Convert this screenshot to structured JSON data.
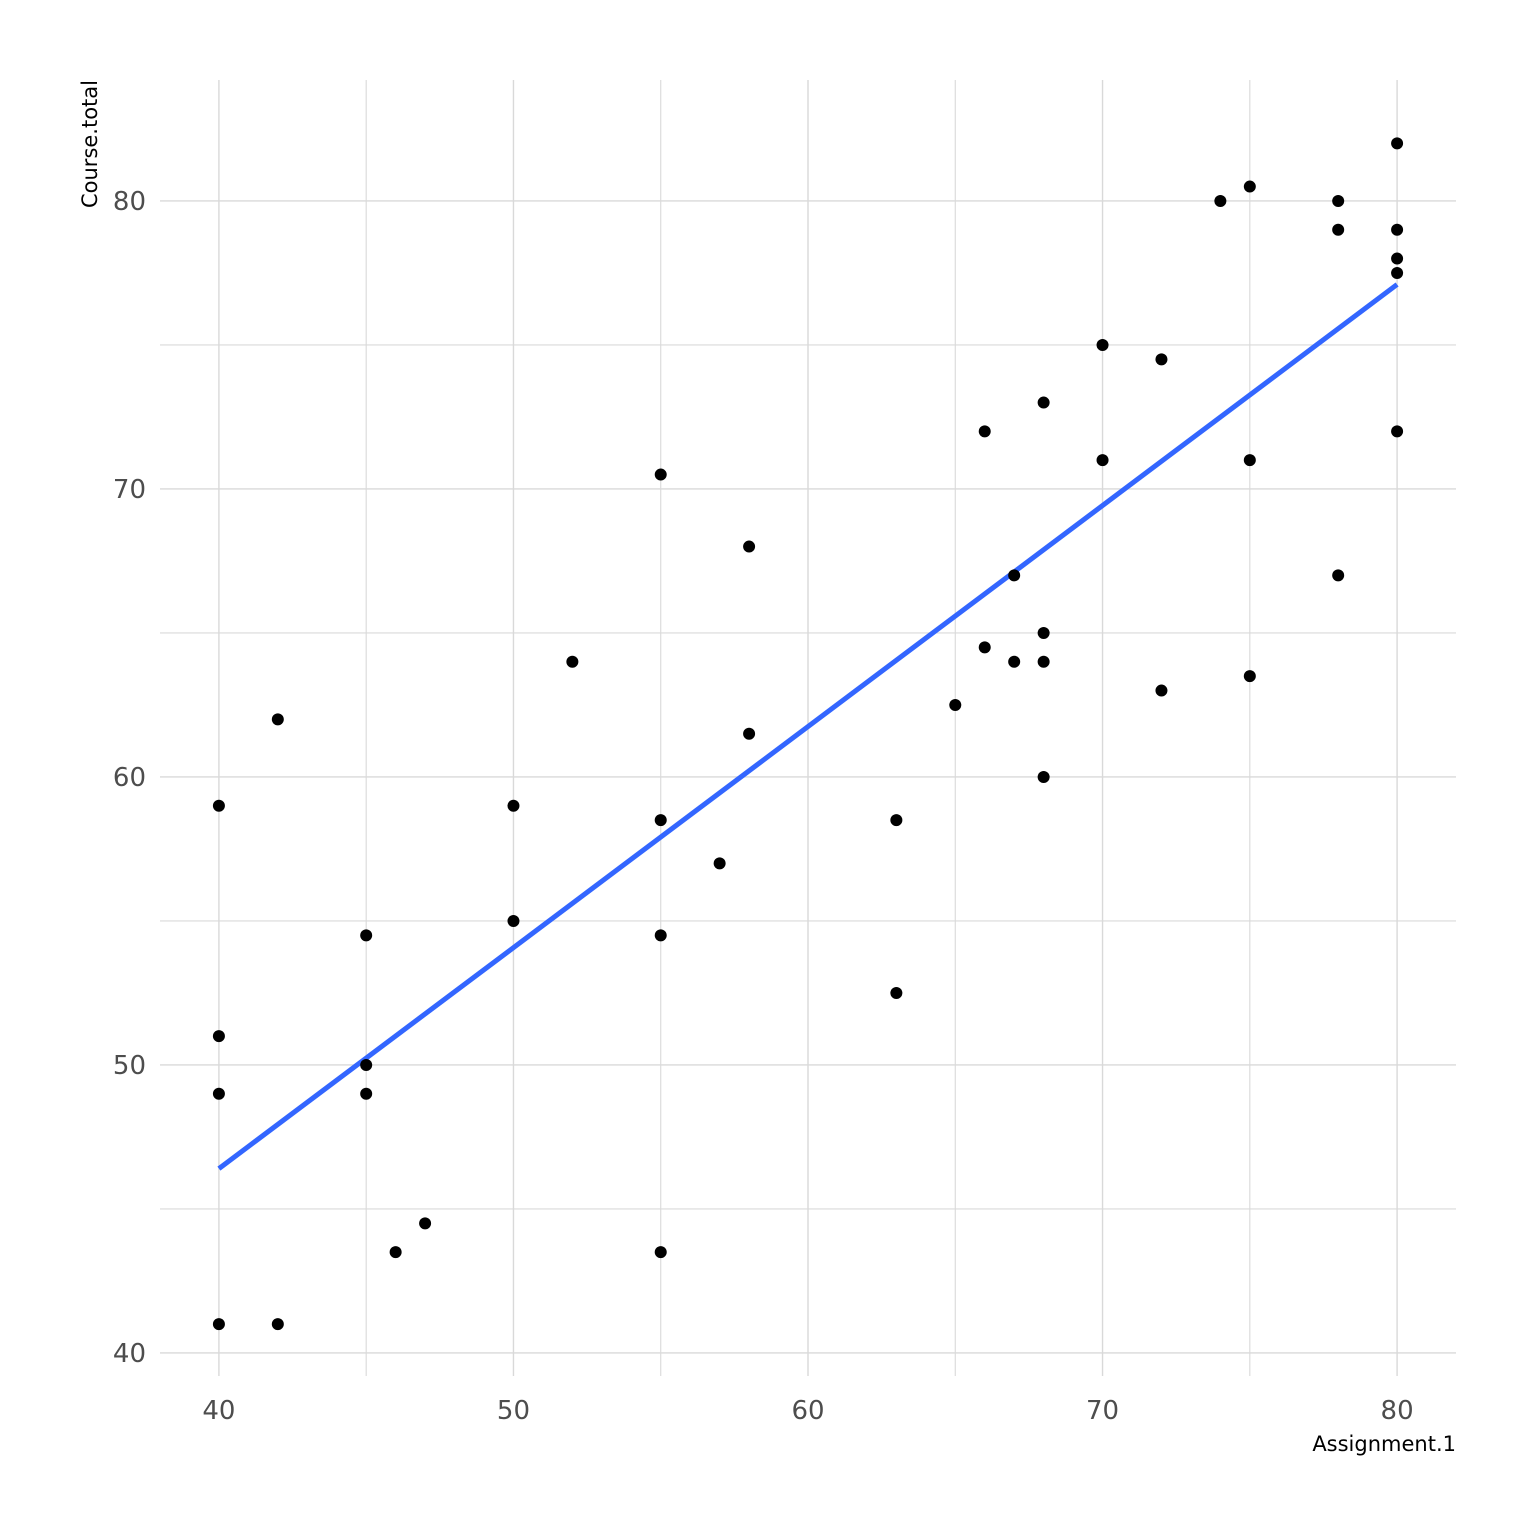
{
  "chart_data": {
    "type": "scatter",
    "title": "",
    "xlabel": "Assignment.1",
    "ylabel": "Course.total",
    "xlim": [
      38,
      82
    ],
    "ylim": [
      39.2,
      84.2
    ],
    "x_ticks": [
      40,
      50,
      60,
      70,
      80
    ],
    "y_ticks": [
      40,
      50,
      60,
      70,
      80
    ],
    "x_minor": [
      45,
      55,
      65,
      75
    ],
    "y_minor": [
      45,
      55,
      65,
      75
    ],
    "grid": true,
    "legend": "none",
    "colors": {
      "points": "#000000",
      "line": "#3366ff",
      "grid": "#d9d9d9"
    },
    "series": [
      {
        "values": [
          [
            40,
            41
          ],
          [
            40,
            49
          ],
          [
            40,
            51
          ],
          [
            40,
            59
          ],
          [
            42,
            41
          ],
          [
            42,
            62
          ],
          [
            45,
            49
          ],
          [
            45,
            50
          ],
          [
            45,
            54.5
          ],
          [
            46,
            43.5
          ],
          [
            47,
            44.5
          ],
          [
            50,
            55
          ],
          [
            50,
            59
          ],
          [
            52,
            64
          ],
          [
            55,
            43.5
          ],
          [
            55,
            54.5
          ],
          [
            55,
            58.5
          ],
          [
            55,
            70.5
          ],
          [
            57,
            57
          ],
          [
            58,
            61.5
          ],
          [
            58,
            68
          ],
          [
            63,
            52.5
          ],
          [
            63,
            58.5
          ],
          [
            65,
            62.5
          ],
          [
            66,
            64.5
          ],
          [
            66,
            72
          ],
          [
            67,
            64
          ],
          [
            67,
            67
          ],
          [
            68,
            60
          ],
          [
            68,
            64
          ],
          [
            68,
            65
          ],
          [
            68,
            73
          ],
          [
            70,
            71
          ],
          [
            70,
            75
          ],
          [
            72,
            63
          ],
          [
            72,
            74.5
          ],
          [
            74,
            80
          ],
          [
            75,
            63.5
          ],
          [
            75,
            71
          ],
          [
            75,
            80.5
          ],
          [
            78,
            67
          ],
          [
            78,
            79
          ],
          [
            78,
            80
          ],
          [
            80,
            72
          ],
          [
            80,
            77.5
          ],
          [
            80,
            78
          ],
          [
            80,
            79
          ],
          [
            80,
            82
          ]
        ]
      }
    ],
    "trend_line": {
      "x": [
        40,
        80
      ],
      "y": [
        46.4,
        77.1
      ]
    }
  }
}
